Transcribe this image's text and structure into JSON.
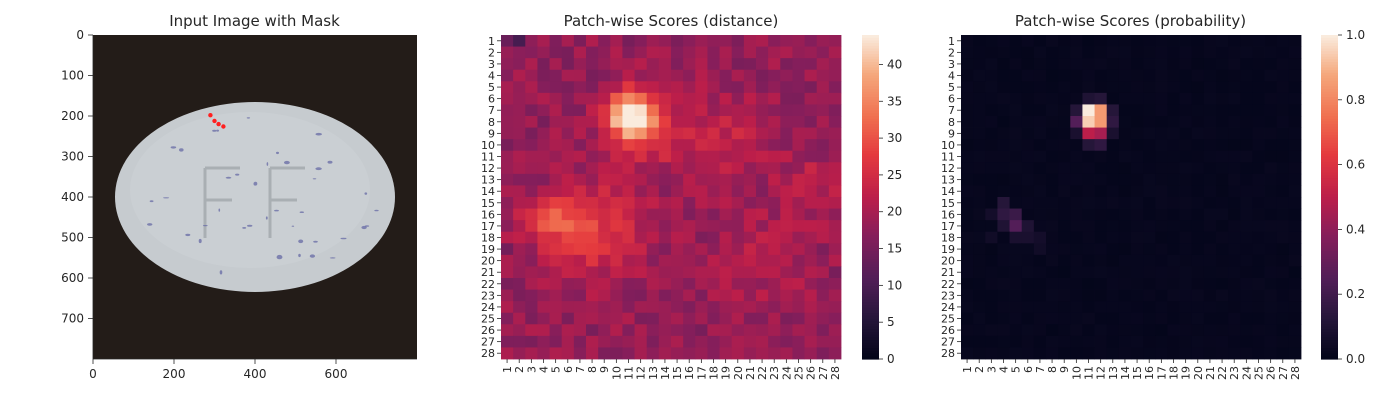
{
  "chart_data": [
    {
      "type": "image",
      "title": "Input Image with Mask",
      "xlim": [
        0,
        800
      ],
      "ylim": [
        800,
        0
      ],
      "x_ticks": [
        "0",
        "200",
        "400",
        "600"
      ],
      "x_tick_values": [
        0,
        200,
        400,
        600
      ],
      "y_ticks": [
        "0",
        "100",
        "200",
        "300",
        "400",
        "500",
        "600",
        "700"
      ],
      "y_tick_values": [
        0,
        100,
        200,
        300,
        400,
        500,
        600,
        700
      ],
      "image_content": {
        "background_color": "#231c18",
        "object_color": "#c8cdd0",
        "object_shape": "ellipse",
        "object_center": [
          400,
          400
        ],
        "object_radii": [
          345,
          235
        ],
        "imprint_text": "FF",
        "mask_color": "#ff2020",
        "mask_points": [
          [
            290,
            198
          ],
          [
            300,
            212
          ],
          [
            310,
            220
          ],
          [
            322,
            226
          ]
        ]
      }
    },
    {
      "type": "heatmap",
      "title": "Patch-wise Scores (distance)",
      "rows": 28,
      "cols": 28,
      "row_labels": [
        "1",
        "2",
        "3",
        "4",
        "5",
        "6",
        "7",
        "8",
        "9",
        "10",
        "11",
        "12",
        "13",
        "14",
        "15",
        "16",
        "17",
        "18",
        "19",
        "20",
        "21",
        "22",
        "23",
        "24",
        "25",
        "26",
        "27",
        "28"
      ],
      "col_labels": [
        "1",
        "2",
        "3",
        "4",
        "5",
        "6",
        "7",
        "8",
        "9",
        "10",
        "11",
        "12",
        "13",
        "14",
        "15",
        "16",
        "17",
        "18",
        "19",
        "20",
        "21",
        "22",
        "23",
        "24",
        "25",
        "26",
        "27",
        "28"
      ],
      "vmin": 0,
      "vmax": 44,
      "colorbar_ticks": [
        "0",
        "5",
        "10",
        "15",
        "20",
        "25",
        "30",
        "35",
        "40"
      ],
      "colorbar_tick_values": [
        0,
        5,
        10,
        15,
        20,
        25,
        30,
        35,
        40
      ],
      "colormap": "rocket",
      "baseline": 18,
      "hotspots": [
        {
          "row": 7.5,
          "col": 11.2,
          "peak": 44,
          "spread": 1.3
        },
        {
          "row": 8.5,
          "col": 12.5,
          "peak": 10,
          "spread": 2.2
        },
        {
          "row": 16.5,
          "col": 4.5,
          "peak": 12,
          "spread": 1.4
        },
        {
          "row": 17.5,
          "col": 8.5,
          "peak": 9,
          "spread": 2.8
        },
        {
          "row": 9.5,
          "col": 19.5,
          "peak": 5,
          "spread": 2.5
        },
        {
          "row": 13.5,
          "col": 26.5,
          "peak": 4,
          "spread": 1.8
        },
        {
          "row": 19.5,
          "col": 22,
          "peak": 4,
          "spread": 2.5
        }
      ]
    },
    {
      "type": "heatmap",
      "title": "Patch-wise Scores (probability)",
      "rows": 28,
      "cols": 28,
      "row_labels": [
        "1",
        "2",
        "3",
        "4",
        "5",
        "6",
        "7",
        "8",
        "9",
        "10",
        "11",
        "12",
        "13",
        "14",
        "15",
        "16",
        "17",
        "18",
        "19",
        "20",
        "21",
        "22",
        "23",
        "24",
        "25",
        "26",
        "27",
        "28"
      ],
      "col_labels": [
        "1",
        "2",
        "3",
        "4",
        "5",
        "6",
        "7",
        "8",
        "9",
        "10",
        "11",
        "12",
        "13",
        "14",
        "15",
        "16",
        "17",
        "18",
        "19",
        "20",
        "21",
        "22",
        "23",
        "24",
        "25",
        "26",
        "27",
        "28"
      ],
      "vmin": 0,
      "vmax": 1.0,
      "colorbar_ticks": [
        "0.0",
        "0.2",
        "0.4",
        "0.6",
        "0.8",
        "1.0"
      ],
      "colorbar_tick_values": [
        0,
        0.2,
        0.4,
        0.6,
        0.8,
        1.0
      ],
      "colormap": "rocket",
      "cells": [
        {
          "row": 7,
          "col": 11,
          "value": 1.0
        },
        {
          "row": 7,
          "col": 12,
          "value": 0.85
        },
        {
          "row": 8,
          "col": 11,
          "value": 0.95
        },
        {
          "row": 8,
          "col": 12,
          "value": 0.85
        },
        {
          "row": 9,
          "col": 11,
          "value": 0.5
        },
        {
          "row": 9,
          "col": 12,
          "value": 0.45
        },
        {
          "row": 6,
          "col": 11,
          "value": 0.1
        },
        {
          "row": 6,
          "col": 12,
          "value": 0.12
        },
        {
          "row": 7,
          "col": 10,
          "value": 0.12
        },
        {
          "row": 8,
          "col": 10,
          "value": 0.25
        },
        {
          "row": 8,
          "col": 13,
          "value": 0.15
        },
        {
          "row": 7,
          "col": 13,
          "value": 0.12
        },
        {
          "row": 10,
          "col": 11,
          "value": 0.12
        },
        {
          "row": 10,
          "col": 12,
          "value": 0.15
        },
        {
          "row": 9,
          "col": 10,
          "value": 0.08
        },
        {
          "row": 9,
          "col": 13,
          "value": 0.08
        },
        {
          "row": 15,
          "col": 4,
          "value": 0.12
        },
        {
          "row": 16,
          "col": 4,
          "value": 0.15
        },
        {
          "row": 16,
          "col": 5,
          "value": 0.18
        },
        {
          "row": 17,
          "col": 5,
          "value": 0.25
        },
        {
          "row": 17,
          "col": 4,
          "value": 0.1
        },
        {
          "row": 17,
          "col": 6,
          "value": 0.1
        },
        {
          "row": 18,
          "col": 5,
          "value": 0.08
        },
        {
          "row": 18,
          "col": 6,
          "value": 0.08
        },
        {
          "row": 16,
          "col": 3,
          "value": 0.06
        },
        {
          "row": 18,
          "col": 7,
          "value": 0.06
        },
        {
          "row": 19,
          "col": 7,
          "value": 0.05
        },
        {
          "row": 18,
          "col": 3,
          "value": 0.05
        }
      ]
    }
  ]
}
